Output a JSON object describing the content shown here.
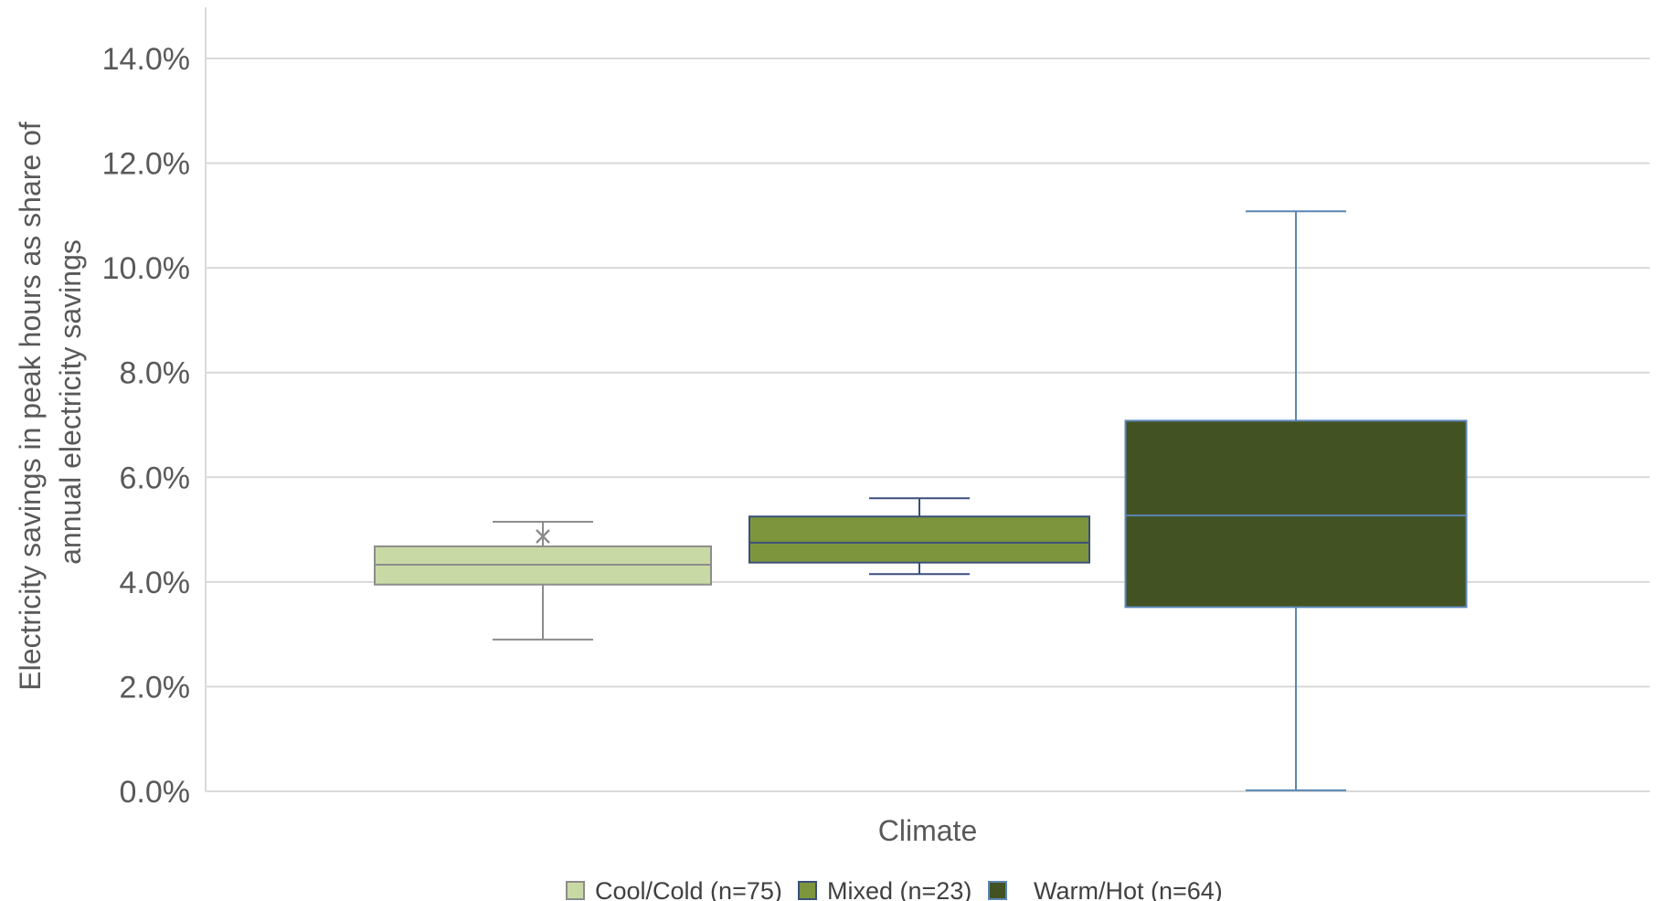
{
  "chart_data": {
    "type": "boxplot",
    "ylabel": [
      "Electricity savings in peak hours as share of",
      "annual electricity savings"
    ],
    "xlabel": "Climate",
    "ylim": [
      0,
      14
    ],
    "yticks": [
      "0.0%",
      "2.0%",
      "4.0%",
      "6.0%",
      "8.0%",
      "10.0%",
      "12.0%",
      "14.0%"
    ],
    "grid": true,
    "legend_position": "bottom",
    "series": [
      {
        "name": "Cool/Cold (n=75)",
        "fill": "#c9d9a5",
        "stroke": "#8c8c8c",
        "min": 2.9,
        "q1": 3.95,
        "median": 4.33,
        "q3": 4.68,
        "max": 5.15,
        "mean": 4.87
      },
      {
        "name": "Mixed (n=23)",
        "fill": "#7d963d",
        "stroke": "#3b4f7a",
        "min": 4.15,
        "q1": 4.37,
        "median": 4.75,
        "q3": 5.25,
        "max": 5.6,
        "mean": null
      },
      {
        "name": "Warm/Hot (n=64)",
        "fill": "#435222",
        "stroke": "#5b86b5",
        "min": 0.02,
        "q1": 3.52,
        "median": 5.27,
        "q3": 7.08,
        "max": 11.08,
        "mean": null
      }
    ]
  }
}
